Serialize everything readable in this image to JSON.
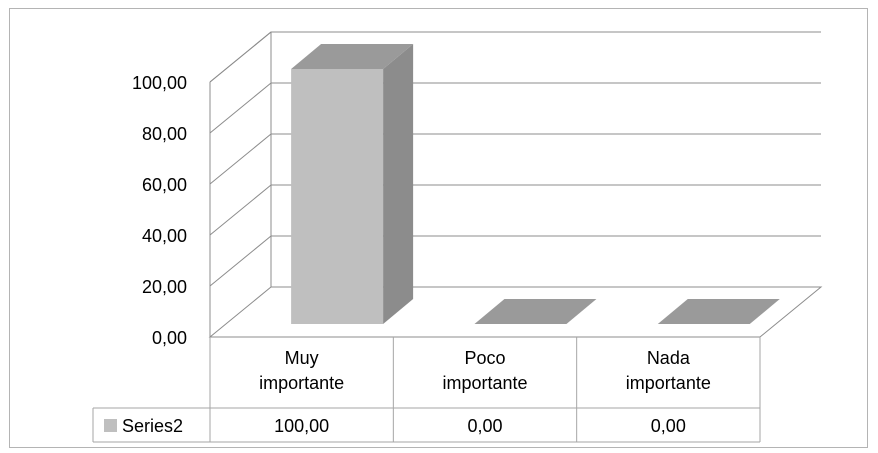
{
  "chart_data": {
    "type": "bar",
    "categories": [
      [
        "Muy",
        "importante"
      ],
      [
        "Poco",
        "importante"
      ],
      [
        "Nada",
        "importante"
      ]
    ],
    "series": [
      {
        "name": "Series2",
        "values": [
          100,
          0,
          0
        ],
        "value_labels": [
          "100,00",
          "0,00",
          "0,00"
        ]
      }
    ],
    "y_ticks": [
      "0,00",
      "20,00",
      "40,00",
      "60,00",
      "80,00",
      "100,00"
    ],
    "ylim": [
      0,
      100
    ],
    "grid": true,
    "legend": "data-table",
    "colors": {
      "bar_front": "#bfbfbf",
      "bar_side": "#8c8c8c",
      "bar_top": "#9a9a9a",
      "floor": "#7f7f7f",
      "grid": "#8c8c8c",
      "table_border": "#a6a6a6"
    }
  }
}
